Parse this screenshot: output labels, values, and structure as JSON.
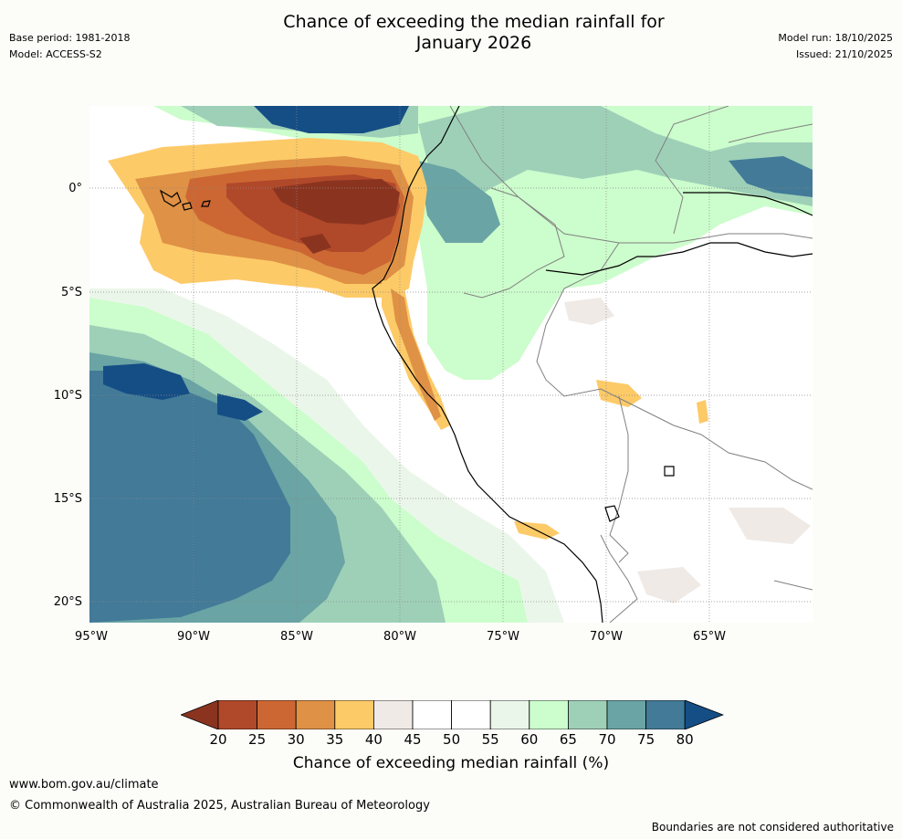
{
  "header": {
    "base_period": "Base period: 1981-2018",
    "model": "Model: ACCESS-S2",
    "title_line1": "Chance of exceeding the median rainfall for",
    "title_line2": "January 2026",
    "model_run": "Model run: 18/10/2025",
    "issued": "Issued: 21/10/2025"
  },
  "map": {
    "latitude_labels": [
      "0°",
      "5°S",
      "10°S",
      "15°S",
      "20°S"
    ],
    "longitude_labels": [
      "95°W",
      "90°W",
      "85°W",
      "80°W",
      "75°W",
      "70°W",
      "65°W"
    ]
  },
  "legend": {
    "tick_labels": [
      "20",
      "25",
      "30",
      "35",
      "40",
      "45",
      "50",
      "55",
      "60",
      "65",
      "70",
      "75",
      "80"
    ],
    "colors": [
      "#8a3420",
      "#b0482a",
      "#cc6733",
      "#df9145",
      "#fdca68",
      "#f0eae6",
      "#ffffff",
      "#ffffff",
      "#ebf6ea",
      "#ccfdcc",
      "#9ed0b8",
      "#6aa4a4",
      "#427a98",
      "#154e85"
    ],
    "label": "Chance of exceeding median rainfall (%)"
  },
  "footer": {
    "website": "www.bom.gov.au/climate",
    "copyright": "© Commonwealth of Australia 2025, Australian Bureau of Meteorology",
    "disclaimer": "Boundaries are not considered authoritative"
  }
}
